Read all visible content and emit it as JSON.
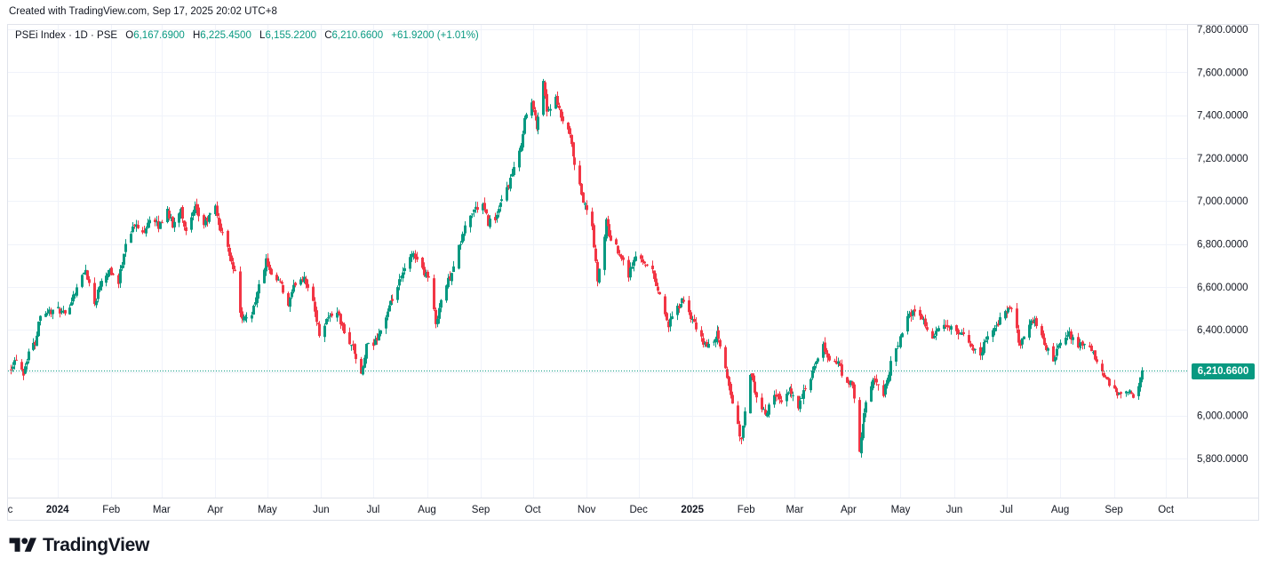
{
  "header": {
    "caption": "Created with TradingView.com, Sep 17, 2025 20:02 UTC+8"
  },
  "legend": {
    "symbol": "PSEi Index · 1D · PSE",
    "open_key": "O",
    "open": "6,167.6900",
    "high_key": "H",
    "high": "6,225.4500",
    "low_key": "L",
    "low": "6,155.2200",
    "close_key": "C",
    "close": "6,210.6600",
    "change": "+61.9200 (+1.01%)"
  },
  "brand": {
    "name": "TradingView"
  },
  "colors": {
    "up": "#089981",
    "down": "#f23645",
    "grid": "#f0f3fa",
    "axis_text": "#131722"
  },
  "chart_data": {
    "type": "candlestick",
    "symbol": "PSEi Index",
    "interval": "1D",
    "exchange": "PSE",
    "y_axis": {
      "position": "right",
      "ylim": [
        5650,
        7870
      ],
      "ticks": [
        {
          "value": 5800,
          "label": "5,800.0000"
        },
        {
          "value": 6000,
          "label": "6,000.0000"
        },
        {
          "value": 6200,
          "label": "6,200.0000"
        },
        {
          "value": 6400,
          "label": "6,400.0000"
        },
        {
          "value": 6600,
          "label": "6,600.0000"
        },
        {
          "value": 6800,
          "label": "6,800.0000"
        },
        {
          "value": 7000,
          "label": "7,000.0000"
        },
        {
          "value": 7200,
          "label": "7,200.0000"
        },
        {
          "value": 7400,
          "label": "7,400.0000"
        },
        {
          "value": 7600,
          "label": "7,600.0000"
        },
        {
          "value": 7800,
          "label": "7,800.0000"
        }
      ]
    },
    "x_axis": {
      "range": [
        "2023-12-05",
        "2025-10-04"
      ],
      "ticks": [
        {
          "date": "2023-12-01",
          "label": "Dec",
          "bold": false
        },
        {
          "date": "2024-01-01",
          "label": "2024",
          "bold": true
        },
        {
          "date": "2024-02-01",
          "label": "Feb",
          "bold": false
        },
        {
          "date": "2024-03-01",
          "label": "Mar",
          "bold": false
        },
        {
          "date": "2024-04-01",
          "label": "Apr",
          "bold": false
        },
        {
          "date": "2024-05-01",
          "label": "May",
          "bold": false
        },
        {
          "date": "2024-06-01",
          "label": "Jun",
          "bold": false
        },
        {
          "date": "2024-07-01",
          "label": "Jul",
          "bold": false
        },
        {
          "date": "2024-08-01",
          "label": "Aug",
          "bold": false
        },
        {
          "date": "2024-09-01",
          "label": "Sep",
          "bold": false
        },
        {
          "date": "2024-10-01",
          "label": "Oct",
          "bold": false
        },
        {
          "date": "2024-11-01",
          "label": "Nov",
          "bold": false
        },
        {
          "date": "2024-12-01",
          "label": "Dec",
          "bold": false
        },
        {
          "date": "2025-01-01",
          "label": "2025",
          "bold": true
        },
        {
          "date": "2025-02-01",
          "label": "Feb",
          "bold": false
        },
        {
          "date": "2025-03-01",
          "label": "Mar",
          "bold": false
        },
        {
          "date": "2025-04-01",
          "label": "Apr",
          "bold": false
        },
        {
          "date": "2025-05-01",
          "label": "May",
          "bold": false
        },
        {
          "date": "2025-06-01",
          "label": "Jun",
          "bold": false
        },
        {
          "date": "2025-07-01",
          "label": "Jul",
          "bold": false
        },
        {
          "date": "2025-08-01",
          "label": "Aug",
          "bold": false
        },
        {
          "date": "2025-09-01",
          "label": "Sep",
          "bold": false
        },
        {
          "date": "2025-10-01",
          "label": "Oct",
          "bold": false
        }
      ]
    },
    "last_price": {
      "value": 6210.66,
      "label": "6,210.6600"
    },
    "grid": true,
    "close_path": [
      [
        "2023-12-05",
        6230
      ],
      [
        "2023-12-08",
        6270
      ],
      [
        "2023-12-12",
        6200
      ],
      [
        "2023-12-15",
        6300
      ],
      [
        "2023-12-19",
        6340
      ],
      [
        "2023-12-22",
        6480
      ],
      [
        "2024-01-02",
        6490
      ],
      [
        "2024-01-05",
        6460
      ],
      [
        "2024-01-09",
        6540
      ],
      [
        "2024-01-12",
        6600
      ],
      [
        "2024-01-17",
        6680
      ],
      [
        "2024-01-22",
        6520
      ],
      [
        "2024-01-26",
        6640
      ],
      [
        "2024-01-31",
        6680
      ],
      [
        "2024-02-05",
        6620
      ],
      [
        "2024-02-09",
        6810
      ],
      [
        "2024-02-14",
        6890
      ],
      [
        "2024-02-19",
        6850
      ],
      [
        "2024-02-23",
        6920
      ],
      [
        "2024-02-28",
        6880
      ],
      [
        "2024-03-04",
        6960
      ],
      [
        "2024-03-07",
        6880
      ],
      [
        "2024-03-12",
        6970
      ],
      [
        "2024-03-15",
        6850
      ],
      [
        "2024-03-20",
        6960
      ],
      [
        "2024-03-25",
        6890
      ],
      [
        "2024-04-01",
        6970
      ],
      [
        "2024-04-04",
        6860
      ],
      [
        "2024-04-08",
        6790
      ],
      [
        "2024-04-12",
        6660
      ],
      [
        "2024-04-16",
        6440
      ],
      [
        "2024-04-22",
        6480
      ],
      [
        "2024-04-26",
        6600
      ],
      [
        "2024-04-30",
        6720
      ],
      [
        "2024-05-03",
        6640
      ],
      [
        "2024-05-08",
        6620
      ],
      [
        "2024-05-13",
        6510
      ],
      [
        "2024-05-17",
        6620
      ],
      [
        "2024-05-22",
        6650
      ],
      [
        "2024-05-27",
        6520
      ],
      [
        "2024-05-31",
        6380
      ],
      [
        "2024-06-04",
        6450
      ],
      [
        "2024-06-10",
        6490
      ],
      [
        "2024-06-14",
        6380
      ],
      [
        "2024-06-19",
        6320
      ],
      [
        "2024-06-24",
        6180
      ],
      [
        "2024-06-27",
        6320
      ],
      [
        "2024-07-01",
        6330
      ],
      [
        "2024-07-05",
        6400
      ],
      [
        "2024-07-10",
        6500
      ],
      [
        "2024-07-15",
        6600
      ],
      [
        "2024-07-19",
        6680
      ],
      [
        "2024-07-24",
        6760
      ],
      [
        "2024-07-29",
        6680
      ],
      [
        "2024-08-02",
        6640
      ],
      [
        "2024-08-06",
        6430
      ],
      [
        "2024-08-09",
        6540
      ],
      [
        "2024-08-14",
        6650
      ],
      [
        "2024-08-19",
        6780
      ],
      [
        "2024-08-23",
        6880
      ],
      [
        "2024-08-28",
        6960
      ],
      [
        "2024-09-02",
        6980
      ],
      [
        "2024-09-05",
        6900
      ],
      [
        "2024-09-10",
        6930
      ],
      [
        "2024-09-13",
        7000
      ],
      [
        "2024-09-18",
        7100
      ],
      [
        "2024-09-23",
        7220
      ],
      [
        "2024-09-26",
        7380
      ],
      [
        "2024-09-30",
        7460
      ],
      [
        "2024-10-03",
        7350
      ],
      [
        "2024-10-07",
        7560
      ],
      [
        "2024-10-09",
        7420
      ],
      [
        "2024-10-14",
        7470
      ],
      [
        "2024-10-17",
        7390
      ],
      [
        "2024-10-22",
        7300
      ],
      [
        "2024-10-25",
        7160
      ],
      [
        "2024-10-30",
        7000
      ],
      [
        "2024-11-04",
        6880
      ],
      [
        "2024-11-07",
        6620
      ],
      [
        "2024-11-12",
        6900
      ],
      [
        "2024-11-15",
        6820
      ],
      [
        "2024-11-20",
        6760
      ],
      [
        "2024-11-25",
        6660
      ],
      [
        "2024-11-29",
        6740
      ],
      [
        "2024-12-04",
        6720
      ],
      [
        "2024-12-09",
        6670
      ],
      [
        "2024-12-13",
        6560
      ],
      [
        "2024-12-18",
        6420
      ],
      [
        "2024-12-23",
        6500
      ],
      [
        "2024-12-27",
        6540
      ],
      [
        "2025-01-02",
        6420
      ],
      [
        "2025-01-07",
        6340
      ],
      [
        "2025-01-10",
        6320
      ],
      [
        "2025-01-15",
        6380
      ],
      [
        "2025-01-20",
        6220
      ],
      [
        "2025-01-24",
        6060
      ],
      [
        "2025-01-29",
        5880
      ],
      [
        "2025-02-03",
        6200
      ],
      [
        "2025-02-07",
        6080
      ],
      [
        "2025-02-12",
        6000
      ],
      [
        "2025-02-17",
        6110
      ],
      [
        "2025-02-21",
        6050
      ],
      [
        "2025-02-26",
        6120
      ],
      [
        "2025-03-03",
        6050
      ],
      [
        "2025-03-07",
        6120
      ],
      [
        "2025-03-12",
        6220
      ],
      [
        "2025-03-17",
        6320
      ],
      [
        "2025-03-21",
        6260
      ],
      [
        "2025-03-26",
        6240
      ],
      [
        "2025-03-31",
        6140
      ],
      [
        "2025-04-03",
        6150
      ],
      [
        "2025-04-07",
        5830
      ],
      [
        "2025-04-11",
        6070
      ],
      [
        "2025-04-16",
        6170
      ],
      [
        "2025-04-21",
        6100
      ],
      [
        "2025-04-25",
        6240
      ],
      [
        "2025-04-30",
        6340
      ],
      [
        "2025-05-05",
        6450
      ],
      [
        "2025-05-09",
        6500
      ],
      [
        "2025-05-14",
        6440
      ],
      [
        "2025-05-19",
        6360
      ],
      [
        "2025-05-23",
        6400
      ],
      [
        "2025-05-28",
        6420
      ],
      [
        "2025-06-02",
        6380
      ],
      [
        "2025-06-06",
        6370
      ],
      [
        "2025-06-11",
        6320
      ],
      [
        "2025-06-16",
        6280
      ],
      [
        "2025-06-20",
        6380
      ],
      [
        "2025-06-25",
        6420
      ],
      [
        "2025-06-30",
        6480
      ],
      [
        "2025-07-04",
        6500
      ],
      [
        "2025-07-09",
        6320
      ],
      [
        "2025-07-14",
        6440
      ],
      [
        "2025-07-18",
        6430
      ],
      [
        "2025-07-23",
        6330
      ],
      [
        "2025-07-28",
        6260
      ],
      [
        "2025-08-01",
        6330
      ],
      [
        "2025-08-06",
        6380
      ],
      [
        "2025-08-11",
        6320
      ],
      [
        "2025-08-15",
        6340
      ],
      [
        "2025-08-20",
        6280
      ],
      [
        "2025-08-25",
        6200
      ],
      [
        "2025-08-29",
        6140
      ],
      [
        "2025-09-03",
        6100
      ],
      [
        "2025-09-08",
        6130
      ],
      [
        "2025-09-12",
        6080
      ],
      [
        "2025-09-15",
        6130
      ],
      [
        "2025-09-17",
        6210.66
      ]
    ]
  }
}
